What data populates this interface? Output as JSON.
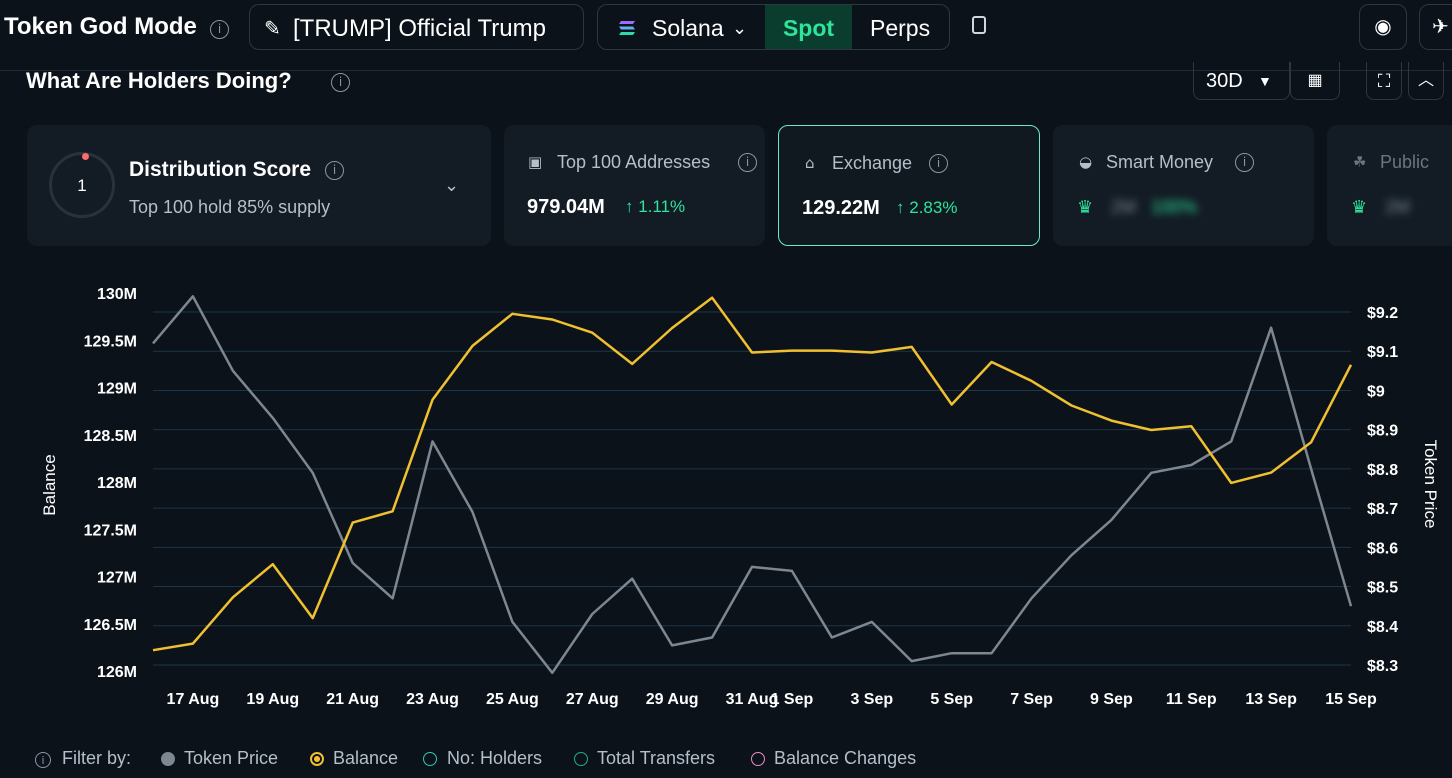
{
  "header": {
    "brand": "Token God Mode",
    "token_name": "[TRUMP] Official Trump",
    "chain": "Solana",
    "tabs": [
      "Spot",
      "Perps"
    ],
    "active_tab": "Spot"
  },
  "section": {
    "title": "What Are Holders Doing?",
    "period": "30D"
  },
  "cards": {
    "distribution": {
      "title": "Distribution Score",
      "score": "1",
      "subtitle": "Top 100 hold 85% supply"
    },
    "top100": {
      "label": "Top 100 Addresses",
      "value": "979.04M",
      "change": "1.11%"
    },
    "exchange": {
      "label": "Exchange",
      "value": "129.22M",
      "change": "2.83%"
    },
    "smart_money": {
      "label": "Smart Money",
      "value": "2M",
      "change": "100%"
    },
    "public": {
      "label": "Public",
      "value": "2M"
    }
  },
  "colors": {
    "balance": "#f0c030",
    "token_price": "#7d8792",
    "accent": "#2ee39a"
  },
  "legend": {
    "filter_label": "Filter by:",
    "items": [
      "Token Price",
      "Balance",
      "No: Holders",
      "Total Transfers",
      "Balance Changes"
    ]
  },
  "chart_data": {
    "type": "line",
    "ylabel_left": "Balance",
    "ylabel_right": "Token Price",
    "y_left_ticks": [
      "126M",
      "126.5M",
      "127M",
      "127.5M",
      "128M",
      "128.5M",
      "129M",
      "129.5M",
      "130M"
    ],
    "y_right_ticks": [
      "$8.3",
      "$8.4",
      "$8.5",
      "$8.6",
      "$8.7",
      "$8.8",
      "$8.9",
      "$9",
      "$9.1",
      "$9.2"
    ],
    "ylim_left": [
      126,
      130
    ],
    "ylim_right": [
      8.3,
      9.2
    ],
    "x_ticks": [
      "17 Aug",
      "19 Aug",
      "21 Aug",
      "23 Aug",
      "25 Aug",
      "27 Aug",
      "29 Aug",
      "31 Aug",
      "1 Sep",
      "3 Sep",
      "5 Sep",
      "7 Sep",
      "9 Sep",
      "11 Sep",
      "13 Sep",
      "15 Sep"
    ],
    "x": [
      "16 Aug",
      "17 Aug",
      "18 Aug",
      "19 Aug",
      "20 Aug",
      "21 Aug",
      "22 Aug",
      "23 Aug",
      "24 Aug",
      "25 Aug",
      "26 Aug",
      "27 Aug",
      "28 Aug",
      "29 Aug",
      "30 Aug",
      "31 Aug",
      "1 Sep",
      "2 Sep",
      "3 Sep",
      "4 Sep",
      "5 Sep",
      "6 Sep",
      "7 Sep",
      "8 Sep",
      "9 Sep",
      "10 Sep",
      "11 Sep",
      "12 Sep",
      "13 Sep",
      "14 Sep",
      "15 Sep"
    ],
    "series": [
      {
        "name": "Balance",
        "axis": "left",
        "values": [
          126.22,
          126.29,
          126.78,
          127.13,
          126.56,
          127.57,
          127.69,
          128.87,
          129.44,
          129.78,
          129.72,
          129.58,
          129.25,
          129.63,
          129.95,
          129.37,
          129.39,
          129.39,
          129.37,
          129.43,
          128.82,
          129.27,
          129.07,
          128.81,
          128.65,
          128.55,
          128.59,
          127.99,
          128.1,
          128.42,
          129.24
        ]
      },
      {
        "name": "Token Price",
        "axis": "right",
        "values": [
          9.12,
          9.24,
          9.05,
          8.93,
          8.79,
          8.56,
          8.47,
          8.87,
          8.69,
          8.41,
          8.28,
          8.43,
          8.52,
          8.35,
          8.37,
          8.55,
          8.54,
          8.37,
          8.41,
          8.31,
          8.33,
          8.33,
          8.47,
          8.58,
          8.67,
          8.79,
          8.81,
          8.87,
          9.16,
          8.8,
          8.45
        ]
      }
    ]
  }
}
